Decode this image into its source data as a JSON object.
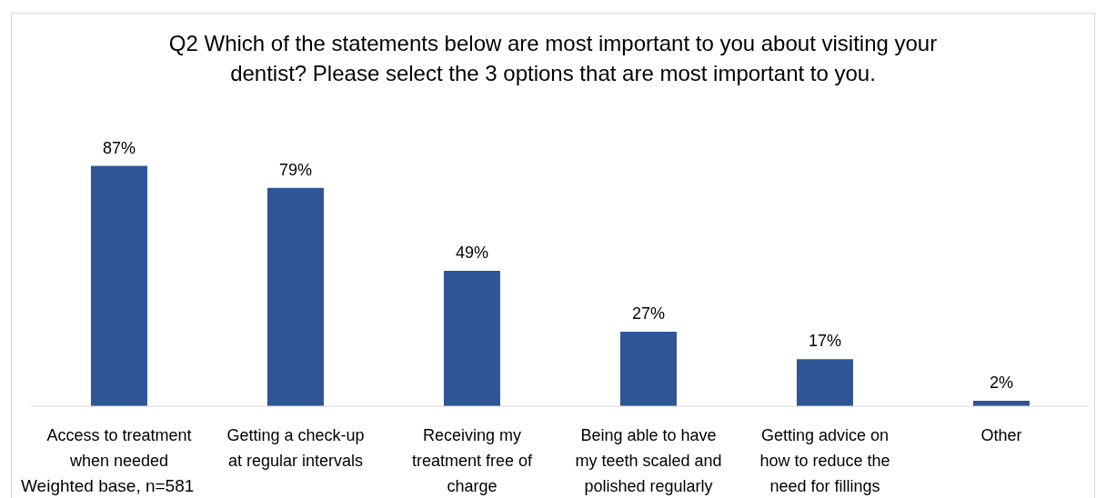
{
  "chart_data": {
    "type": "bar",
    "title": "Q2 Which of the statements below are most important to you about visiting your dentist? Please select the 3 options that are most important to you.",
    "categories": [
      "Access to treatment when needed",
      "Getting a check-up at regular intervals",
      "Receiving my treatment free of charge",
      "Being able to have my teeth scaled and polished regularly",
      "Getting advice on how to reduce the need for fillings",
      "Other"
    ],
    "values": [
      87,
      79,
      49,
      27,
      17,
      2
    ],
    "value_labels": [
      "87%",
      "79%",
      "49%",
      "27%",
      "17%",
      "2%"
    ],
    "color": "#2f5597",
    "annotations": [
      "Weighted base, n=581"
    ]
  }
}
